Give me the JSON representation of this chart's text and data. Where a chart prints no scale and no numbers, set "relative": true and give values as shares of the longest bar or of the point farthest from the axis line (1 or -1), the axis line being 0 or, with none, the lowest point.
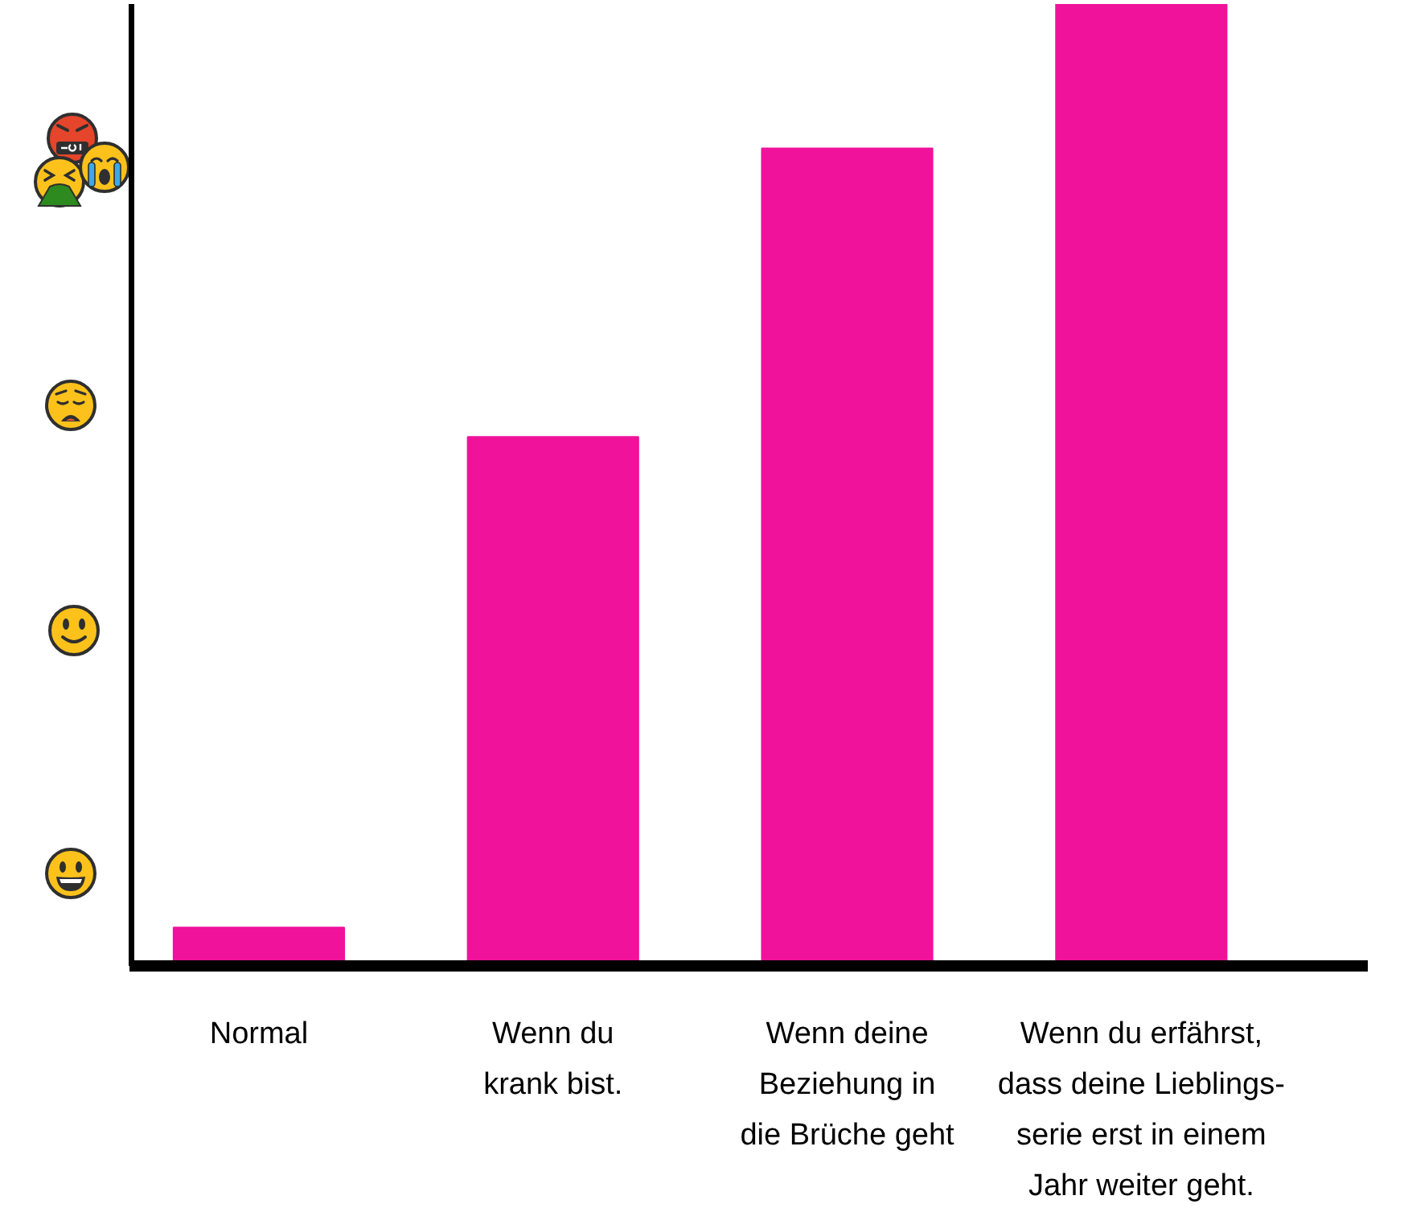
{
  "chart_data": {
    "type": "bar",
    "categories": [
      "Normal",
      "Wenn du\nkrank bist.",
      "Wenn deine\nBeziehung in\ndie Brüche geht",
      "Wenn du erfährst,\ndass deine Lieblings-\nserie erst in einem\nJahr weiter geht."
    ],
    "values": [
      0.04,
      0.55,
      0.85,
      1
    ],
    "color": "#f0129a",
    "relative": true,
    "grid": false
  }
}
